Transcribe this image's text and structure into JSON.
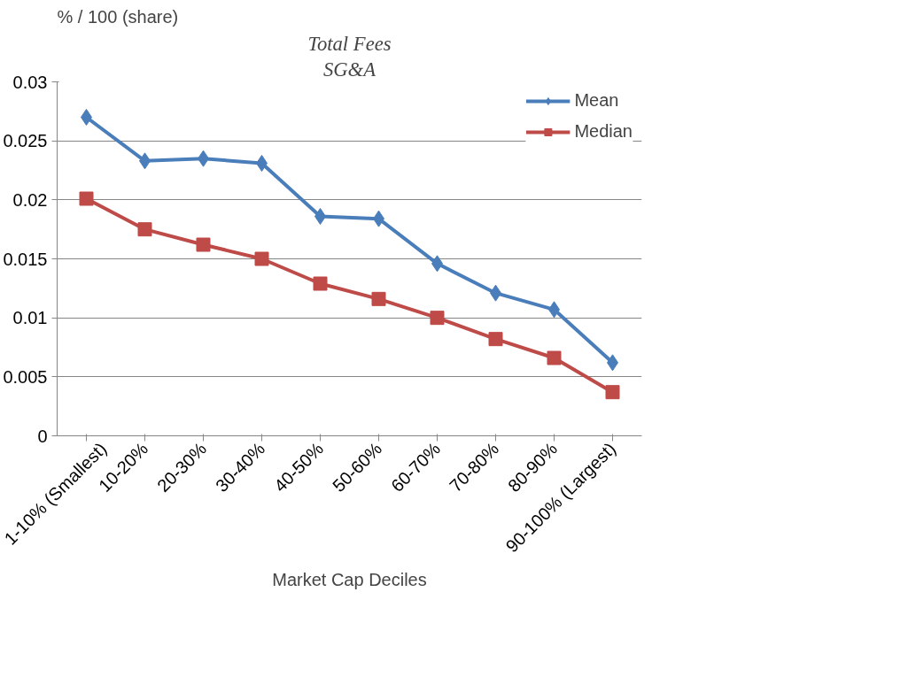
{
  "chart_data": {
    "type": "line",
    "title": "Total Fees",
    "subtitle": "SG&A",
    "ylabel": "% / 100  (share)",
    "xlabel": "Market Cap Deciles",
    "categories": [
      "1-10% (Smallest)",
      "10-20%",
      "20-30%",
      "30-40%",
      "40-50%",
      "50-60%",
      "60-70%",
      "70-80%",
      "80-90%",
      "90-100% (Largest)"
    ],
    "series": [
      {
        "name": "Mean",
        "color": "#4a7ebb",
        "marker": "diamond",
        "values": [
          0.027,
          0.0233,
          0.0235,
          0.0231,
          0.0186,
          0.0184,
          0.0146,
          0.0121,
          0.0107,
          0.0062
        ]
      },
      {
        "name": "Median",
        "color": "#be4b48",
        "marker": "square",
        "values": [
          0.0201,
          0.0175,
          0.0162,
          0.015,
          0.0129,
          0.0116,
          0.01,
          0.0082,
          0.0066,
          0.0037
        ]
      }
    ],
    "ylim": [
      0,
      0.03
    ],
    "yticks": [
      0,
      0.005,
      0.01,
      0.015,
      0.02,
      0.025,
      0.03
    ],
    "grid": "y",
    "legend": "top right",
    "line_style": "solid"
  }
}
